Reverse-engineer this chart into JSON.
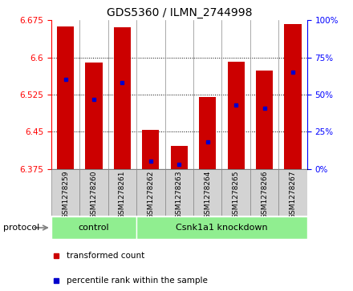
{
  "title": "GDS5360 / ILMN_2744998",
  "samples": [
    "GSM1278259",
    "GSM1278260",
    "GSM1278261",
    "GSM1278262",
    "GSM1278263",
    "GSM1278264",
    "GSM1278265",
    "GSM1278266",
    "GSM1278267"
  ],
  "transformed_counts": [
    6.662,
    6.59,
    6.661,
    6.454,
    6.422,
    6.52,
    6.591,
    6.573,
    6.668
  ],
  "percentile_ranks": [
    60,
    47,
    58,
    5,
    3,
    18,
    43,
    41,
    65
  ],
  "ymin": 6.375,
  "ymax": 6.675,
  "yticks": [
    6.375,
    6.45,
    6.525,
    6.6,
    6.675
  ],
  "right_yticks": [
    0,
    25,
    50,
    75,
    100
  ],
  "bar_color": "#cc0000",
  "dot_color": "#0000cc",
  "ctrl_count": 3,
  "kd_count": 6,
  "ctrl_label": "control",
  "kd_label": "Csnk1a1 knockdown",
  "group_color": "#90ee90",
  "protocol_label": "protocol",
  "legend_items": [
    {
      "label": "transformed count",
      "color": "#cc0000"
    },
    {
      "label": "percentile rank within the sample",
      "color": "#0000cc"
    }
  ],
  "xlabels_bg": "#d3d3d3",
  "plot_bg": "#ffffff",
  "border_color": "#888888"
}
